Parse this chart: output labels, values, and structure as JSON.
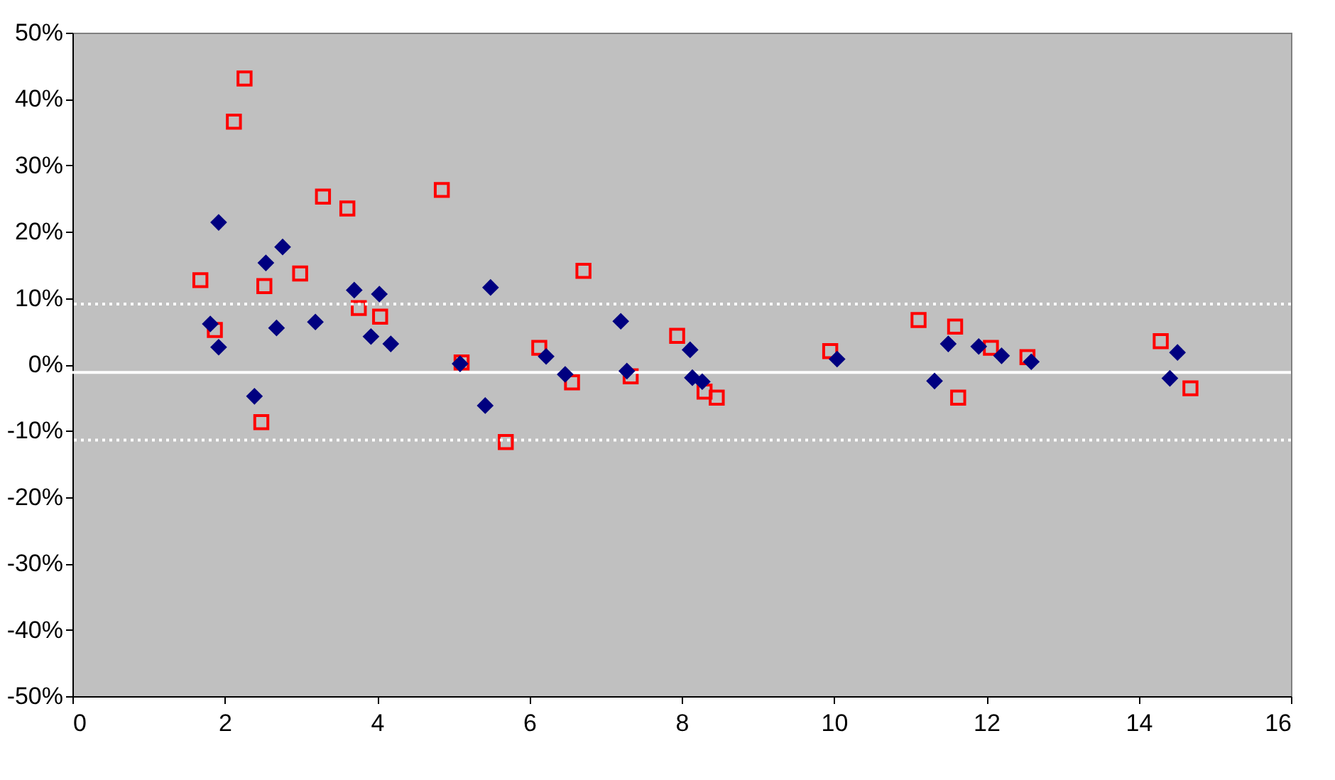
{
  "chart_data": {
    "type": "scatter",
    "xlim": [
      0,
      16
    ],
    "xticks": [
      0,
      2,
      4,
      6,
      8,
      10,
      12,
      14,
      16
    ],
    "ylim": [
      -50,
      50
    ],
    "yticks": [
      {
        "value": -50,
        "label": "-50%"
      },
      {
        "value": -40,
        "label": "-40%"
      },
      {
        "value": -30,
        "label": "-30%"
      },
      {
        "value": -20,
        "label": "-20%"
      },
      {
        "value": -10,
        "label": "-10%"
      },
      {
        "value": 0,
        "label": "0%"
      },
      {
        "value": 10,
        "label": "10%"
      },
      {
        "value": 20,
        "label": "20%"
      },
      {
        "value": 30,
        "label": "30%"
      },
      {
        "value": 40,
        "label": "40%"
      },
      {
        "value": 50,
        "label": "50%"
      }
    ],
    "grid": false,
    "series": [
      {
        "color": "#ff0000",
        "marker": "square",
        "x": [
          2.26,
          2.12,
          3.29,
          3.61,
          4.85,
          1.68,
          2.52,
          2.99,
          3.76,
          4.04,
          1.87,
          5.11,
          2.48,
          5.69,
          6.71,
          6.13,
          6.56,
          7.33,
          7.94,
          8.3,
          8.46,
          9.95,
          11.11,
          11.59,
          12.06,
          12.54,
          11.63,
          14.29,
          14.68
        ],
        "values": [
          43.1,
          36.6,
          25.3,
          23.5,
          26.3,
          12.7,
          11.8,
          13.7,
          8.5,
          7.2,
          5.2,
          0.3,
          -8.7,
          -11.7,
          14.1,
          2.5,
          -2.7,
          -1.8,
          4.3,
          -4.1,
          -5.0,
          2.0,
          6.7,
          5.7,
          2.5,
          1.1,
          -5.0,
          3.5,
          -3.6
        ]
      },
      {
        "color": "#000080",
        "marker": "diamond",
        "x": [
          1.92,
          2.76,
          2.54,
          3.7,
          4.03,
          5.49,
          1.81,
          2.68,
          3.19,
          3.92,
          4.18,
          1.92,
          5.09,
          2.39,
          5.42,
          7.2,
          6.22,
          6.47,
          7.28,
          8.11,
          8.14,
          8.27,
          10.04,
          11.5,
          11.9,
          12.2,
          12.59,
          11.32,
          14.51,
          14.41
        ],
        "values": [
          21.4,
          17.7,
          15.3,
          11.2,
          10.6,
          11.6,
          6.1,
          5.5,
          6.4,
          4.2,
          3.1,
          2.6,
          0.1,
          -4.8,
          -6.2,
          6.5,
          1.2,
          -1.5,
          -1.0,
          2.2,
          -2.0,
          -2.6,
          0.8,
          3.1,
          2.7,
          1.3,
          0.4,
          -2.5,
          1.8,
          -2.1
        ]
      }
    ],
    "ref_lines": [
      {
        "axis": "y",
        "value": 9.1,
        "color": "#ffffff",
        "line_style": "dotted"
      },
      {
        "axis": "y",
        "value": -1.2,
        "color": "#ffffff",
        "line_style": "solid"
      },
      {
        "axis": "y",
        "value": -11.4,
        "color": "#ffffff",
        "line_style": "dotted"
      }
    ]
  }
}
